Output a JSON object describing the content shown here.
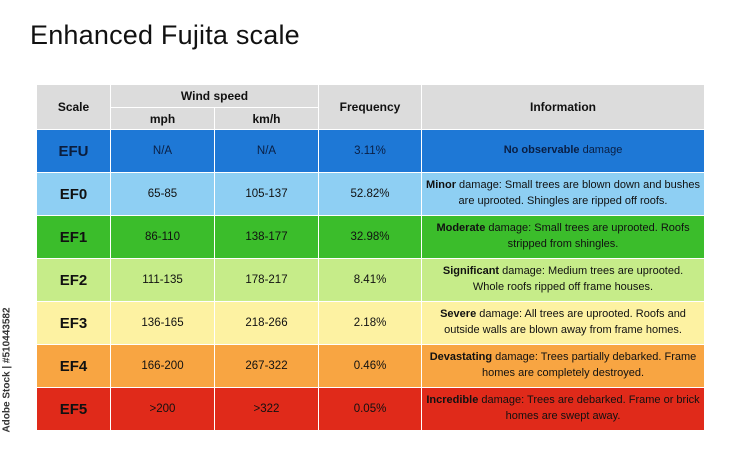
{
  "title": "Enhanced Fujita scale",
  "credit": "Adobe Stock | #510443582",
  "header": {
    "scale": "Scale",
    "wind_speed": "Wind speed",
    "mph": "mph",
    "kmh": "km/h",
    "frequency": "Frequency",
    "information": "Information"
  },
  "rows": [
    {
      "scale": "EFU",
      "mph": "N/A",
      "kmh": "N/A",
      "frequency": "3.11%",
      "info_bold": "No observable",
      "info_rest": " damage",
      "color": "#1e78d6"
    },
    {
      "scale": "EF0",
      "mph": "65-85",
      "kmh": "105-137",
      "frequency": "52.82%",
      "info_bold": "Minor",
      "info_rest": " damage: Small trees are blown down and bushes are uprooted. Shingles are ripped off roofs.",
      "color": "#8ecff3"
    },
    {
      "scale": "EF1",
      "mph": "86-110",
      "kmh": "138-177",
      "frequency": "32.98%",
      "info_bold": "Moderate",
      "info_rest": " damage: Small trees are uprooted. Roofs stripped from shingles.",
      "color": "#3bbd2b"
    },
    {
      "scale": "EF2",
      "mph": "111-135",
      "kmh": "178-217",
      "frequency": "8.41%",
      "info_bold": "Significant",
      "info_rest": " damage: Medium trees are uprooted. Whole roofs ripped off frame houses.",
      "color": "#c6ec89"
    },
    {
      "scale": "EF3",
      "mph": "136-165",
      "kmh": "218-266",
      "frequency": "2.18%",
      "info_bold": "Severe",
      "info_rest": " damage: All trees are uprooted. Roofs and outside walls are blown away from frame homes.",
      "color": "#fdf2a2"
    },
    {
      "scale": "EF4",
      "mph": "166-200",
      "kmh": "267-322",
      "frequency": "0.46%",
      "info_bold": "Devastating",
      "info_rest": " damage: Trees partially debarked. Frame homes are completely destroyed.",
      "color": "#f8a542"
    },
    {
      "scale": "EF5",
      "mph": ">200",
      "kmh": ">322",
      "frequency": "0.05%",
      "info_bold": "Incredible",
      "info_rest": " damage: Trees are debarked. Frame or brick homes are swept away.",
      "color": "#e02a1a"
    }
  ]
}
